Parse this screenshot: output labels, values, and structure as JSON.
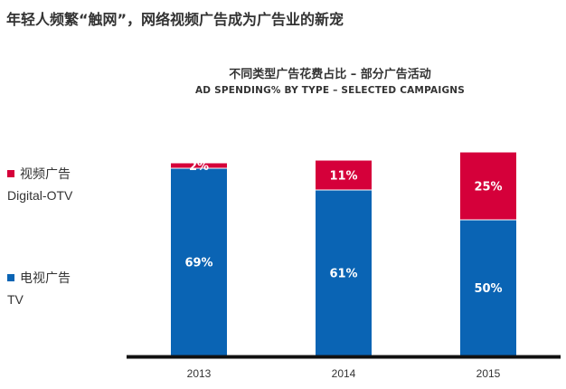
{
  "headline": "年轻人频繁“触网”，网络视频广告成为广告业的新宠",
  "chart_data": {
    "type": "bar",
    "stacked": true,
    "title": "不同类型广告花费占比 – 部分广告活动",
    "subtitle": "AD SPENDING% BY TYPE – SELECTED CAMPAIGNS",
    "categories": [
      "2013",
      "2014",
      "2015"
    ],
    "series": [
      {
        "name": "电视广告 TV",
        "values": [
          69,
          61,
          50
        ],
        "labels": [
          "69%",
          "61%",
          "50%"
        ],
        "color": "#0a64b4"
      },
      {
        "name": "视频广告 Digital-OTV",
        "values": [
          2,
          11,
          25
        ],
        "labels": [
          "2%",
          "11%",
          "25%"
        ],
        "color": "#d5003a"
      }
    ],
    "ylim": [
      0,
      75
    ],
    "grid": false,
    "legend_position": "left"
  },
  "legend": [
    {
      "label_cn": "视频广告",
      "label_en": "Digital-OTV",
      "color": "#d5003a"
    },
    {
      "label_cn": "电视广告",
      "label_en": "TV",
      "color": "#0a64b4"
    }
  ]
}
